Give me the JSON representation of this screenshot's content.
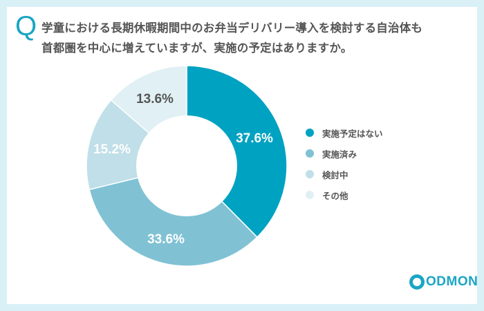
{
  "header": {
    "q_mark": "Q",
    "title_line1": "学童における長期休暇期間中のお弁当デリバリー導入を検討する自治体も",
    "title_line2": "首都圏を中心に増えていますが、実施の予定はありますか。"
  },
  "legend": [
    {
      "label": "実施予定はない",
      "color": "#00a2c1"
    },
    {
      "label": "実施済み",
      "color": "#80c2d4"
    },
    {
      "label": "検討中",
      "color": "#c0dfe8"
    },
    {
      "label": "その他",
      "color": "#e0f0f4"
    }
  ],
  "labels": {
    "s0": "37.6%",
    "s1": "33.6%",
    "s2": "15.2%",
    "s3": "13.6%"
  },
  "logo": {
    "text": "ODMON"
  },
  "chart_data": {
    "type": "pie",
    "donut": true,
    "title": "学童における長期休暇期間中のお弁当デリバリー導入を検討する自治体も首都圏を中心に増えていますが、実施の予定はありますか。",
    "categories": [
      "実施予定はない",
      "実施済み",
      "検討中",
      "その他"
    ],
    "values": [
      37.6,
      33.6,
      15.2,
      13.6
    ],
    "colors": [
      "#00a2c1",
      "#80c2d4",
      "#c0dfe8",
      "#e0f0f4"
    ],
    "unit": "%",
    "legend_position": "right"
  }
}
